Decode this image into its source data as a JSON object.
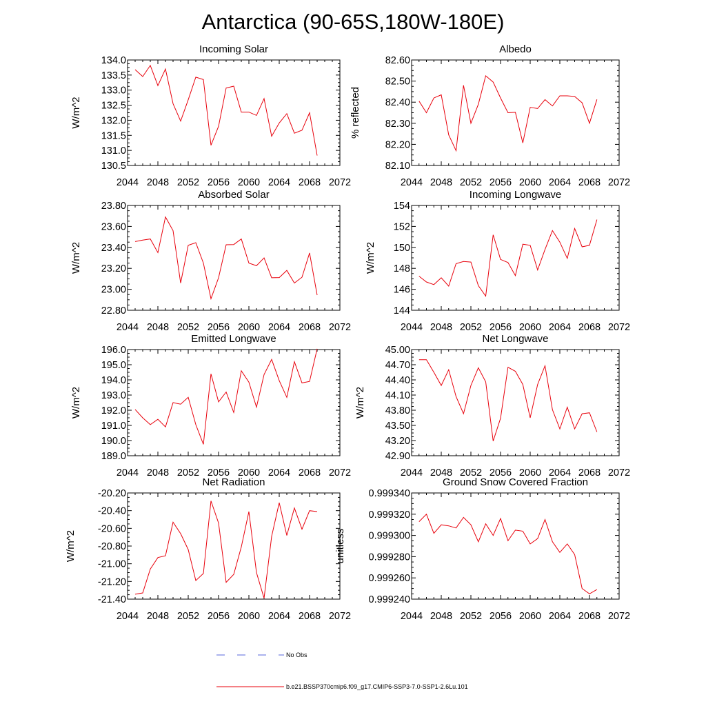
{
  "figure": {
    "title": "Antarctica (90-65S,180W-180E)"
  },
  "legend": {
    "items": [
      {
        "label": "No Obs",
        "color": "#5566dd",
        "style": "dashed"
      },
      {
        "label": "b.e21.BSSP370cmip6.f09_g17.CMIP6-SSP3-7.0-SSP1-2.6Lu.101",
        "color": "#e8000b",
        "style": "solid"
      }
    ]
  },
  "chart_data": [
    {
      "type": "line",
      "title": "Incoming Solar",
      "ylabel": "W/m^2",
      "xlim": [
        2044,
        2072
      ],
      "ylim": [
        130.5,
        134.0
      ],
      "xticks": [
        2044,
        2048,
        2052,
        2056,
        2060,
        2064,
        2068,
        2072
      ],
      "xtick_labels": [
        "2044",
        "2048",
        "2052",
        "2056",
        "2060",
        "2064",
        "2068",
        "2072"
      ],
      "yticks": [
        130.5,
        131.0,
        131.5,
        132.0,
        132.5,
        133.0,
        133.5,
        134.0
      ],
      "ytick_labels": [
        "130.5",
        "131.0",
        "131.5",
        "132.0",
        "132.5",
        "133.0",
        "133.5",
        "134.0"
      ],
      "series": [
        {
          "color": "#e8000b",
          "x": [
            2045,
            2046,
            2047,
            2048,
            2049,
            2050,
            2051,
            2052,
            2053,
            2054,
            2055,
            2056,
            2057,
            2058,
            2059,
            2060,
            2061,
            2062,
            2063,
            2064,
            2065,
            2066,
            2067,
            2068,
            2069
          ],
          "y": [
            133.68,
            133.45,
            133.82,
            133.15,
            133.7,
            132.55,
            131.97,
            132.68,
            133.43,
            133.35,
            131.17,
            131.8,
            133.07,
            133.13,
            132.27,
            132.27,
            132.16,
            132.72,
            131.47,
            131.91,
            132.22,
            131.57,
            131.67,
            132.25,
            130.83
          ]
        }
      ]
    },
    {
      "type": "line",
      "title": "Albedo",
      "ylabel": "% reflected",
      "xlim": [
        2044,
        2072
      ],
      "ylim": [
        82.1,
        82.6
      ],
      "xticks": [
        2044,
        2048,
        2052,
        2056,
        2060,
        2064,
        2068,
        2072
      ],
      "xtick_labels": [
        "2044",
        "2048",
        "2052",
        "2056",
        "2060",
        "2064",
        "2068",
        "2072"
      ],
      "yticks": [
        82.1,
        82.2,
        82.3,
        82.4,
        82.5,
        82.6
      ],
      "ytick_labels": [
        "82.10",
        "82.20",
        "82.30",
        "82.40",
        "82.50",
        "82.60"
      ],
      "series": [
        {
          "color": "#e8000b",
          "x": [
            2045,
            2046,
            2047,
            2048,
            2049,
            2050,
            2051,
            2052,
            2053,
            2054,
            2055,
            2056,
            2057,
            2058,
            2059,
            2060,
            2061,
            2062,
            2063,
            2064,
            2065,
            2066,
            2067,
            2068,
            2069
          ],
          "y": [
            82.405,
            82.35,
            82.42,
            82.435,
            82.245,
            82.17,
            82.48,
            82.3,
            82.39,
            82.525,
            82.495,
            82.42,
            82.35,
            82.352,
            82.207,
            82.375,
            82.37,
            82.412,
            82.382,
            82.43,
            82.43,
            82.427,
            82.397,
            82.3,
            82.413
          ]
        }
      ]
    },
    {
      "type": "line",
      "title": "Absorbed Solar",
      "ylabel": "W/m^2",
      "xlim": [
        2044,
        2072
      ],
      "ylim": [
        22.8,
        23.8
      ],
      "xticks": [
        2044,
        2048,
        2052,
        2056,
        2060,
        2064,
        2068,
        2072
      ],
      "xtick_labels": [
        "2044",
        "2048",
        "2052",
        "2056",
        "2060",
        "2064",
        "2068",
        "2072"
      ],
      "yticks": [
        22.8,
        23.0,
        23.2,
        23.4,
        23.6,
        23.8
      ],
      "ytick_labels": [
        "22.80",
        "23.00",
        "23.20",
        "23.40",
        "23.60",
        "23.80"
      ],
      "series": [
        {
          "color": "#e8000b",
          "x": [
            2045,
            2046,
            2047,
            2048,
            2049,
            2050,
            2051,
            2052,
            2053,
            2054,
            2055,
            2056,
            2057,
            2058,
            2059,
            2060,
            2061,
            2062,
            2063,
            2064,
            2065,
            2066,
            2067,
            2068,
            2069
          ],
          "y": [
            23.455,
            23.47,
            23.48,
            23.35,
            23.69,
            23.56,
            23.06,
            23.42,
            23.445,
            23.25,
            22.91,
            23.11,
            23.425,
            23.427,
            23.48,
            23.25,
            23.225,
            23.3,
            23.11,
            23.112,
            23.18,
            23.06,
            23.115,
            23.347,
            22.945
          ]
        }
      ]
    },
    {
      "type": "line",
      "title": "Incoming Longwave",
      "ylabel": "W/m^2",
      "xlim": [
        2044,
        2072
      ],
      "ylim": [
        144,
        154
      ],
      "xticks": [
        2044,
        2048,
        2052,
        2056,
        2060,
        2064,
        2068,
        2072
      ],
      "xtick_labels": [
        "2044",
        "2048",
        "2052",
        "2056",
        "2060",
        "2064",
        "2068",
        "2072"
      ],
      "yticks": [
        144,
        146,
        148,
        150,
        152,
        154
      ],
      "ytick_labels": [
        "144",
        "146",
        "148",
        "150",
        "152",
        "154"
      ],
      "series": [
        {
          "color": "#e8000b",
          "x": [
            2045,
            2046,
            2047,
            2048,
            2049,
            2050,
            2051,
            2052,
            2053,
            2054,
            2055,
            2056,
            2057,
            2058,
            2059,
            2060,
            2061,
            2062,
            2063,
            2064,
            2065,
            2066,
            2067,
            2068,
            2069
          ],
          "y": [
            147.25,
            146.7,
            146.45,
            147.1,
            146.3,
            148.45,
            148.65,
            148.6,
            146.35,
            145.35,
            151.2,
            148.85,
            148.55,
            147.3,
            150.3,
            150.2,
            147.85,
            149.8,
            151.6,
            150.5,
            148.95,
            151.8,
            150.05,
            150.2,
            152.65
          ]
        }
      ]
    },
    {
      "type": "line",
      "title": "Emitted Longwave",
      "ylabel": "W/m^2",
      "xlim": [
        2044,
        2072
      ],
      "ylim": [
        189.0,
        196.0
      ],
      "xticks": [
        2044,
        2048,
        2052,
        2056,
        2060,
        2064,
        2068,
        2072
      ],
      "xtick_labels": [
        "2044",
        "2048",
        "2052",
        "2056",
        "2060",
        "2064",
        "2068",
        "2072"
      ],
      "yticks": [
        189.0,
        190.0,
        191.0,
        192.0,
        193.0,
        194.0,
        195.0,
        196.0
      ],
      "ytick_labels": [
        "189.0",
        "190.0",
        "191.0",
        "192.0",
        "193.0",
        "194.0",
        "195.0",
        "196.0"
      ],
      "series": [
        {
          "color": "#e8000b",
          "x": [
            2045,
            2046,
            2047,
            2048,
            2049,
            2050,
            2051,
            2052,
            2053,
            2054,
            2055,
            2056,
            2057,
            2058,
            2059,
            2060,
            2061,
            2062,
            2063,
            2064,
            2065,
            2066,
            2067,
            2068,
            2069
          ],
          "y": [
            192.05,
            191.5,
            191.05,
            191.4,
            190.9,
            192.5,
            192.4,
            192.85,
            191.05,
            189.75,
            194.4,
            192.55,
            193.2,
            191.85,
            194.6,
            193.85,
            192.2,
            194.35,
            195.35,
            193.95,
            192.85,
            195.2,
            193.8,
            193.9,
            196.05
          ]
        }
      ]
    },
    {
      "type": "line",
      "title": "Net Longwave",
      "ylabel": "W/m^2",
      "xlim": [
        2044,
        2072
      ],
      "ylim": [
        42.9,
        45.0
      ],
      "xticks": [
        2044,
        2048,
        2052,
        2056,
        2060,
        2064,
        2068,
        2072
      ],
      "xtick_labels": [
        "2044",
        "2048",
        "2052",
        "2056",
        "2060",
        "2064",
        "2068",
        "2072"
      ],
      "yticks": [
        42.9,
        43.2,
        43.5,
        43.8,
        44.1,
        44.4,
        44.7,
        45.0
      ],
      "ytick_labels": [
        "42.90",
        "43.20",
        "43.50",
        "43.80",
        "44.10",
        "44.40",
        "44.70",
        "45.00"
      ],
      "series": [
        {
          "color": "#e8000b",
          "x": [
            2045,
            2046,
            2047,
            2048,
            2049,
            2050,
            2051,
            2052,
            2053,
            2054,
            2055,
            2056,
            2057,
            2058,
            2059,
            2060,
            2061,
            2062,
            2063,
            2064,
            2065,
            2066,
            2067,
            2068,
            2069
          ],
          "y": [
            44.8,
            44.8,
            44.55,
            44.29,
            44.6,
            44.07,
            43.73,
            44.29,
            44.64,
            44.36,
            43.19,
            43.64,
            44.65,
            44.57,
            44.31,
            43.65,
            44.31,
            44.68,
            43.81,
            43.43,
            43.86,
            43.43,
            43.73,
            43.75,
            43.37
          ]
        }
      ]
    },
    {
      "type": "line",
      "title": "Net Radiation",
      "ylabel": "W/m^2",
      "xlim": [
        2044,
        2072
      ],
      "ylim": [
        -21.4,
        -20.2
      ],
      "xticks": [
        2044,
        2048,
        2052,
        2056,
        2060,
        2064,
        2068,
        2072
      ],
      "xtick_labels": [
        "2044",
        "2048",
        "2052",
        "2056",
        "2060",
        "2064",
        "2068",
        "2072"
      ],
      "yticks": [
        -21.4,
        -21.2,
        -21.0,
        -20.8,
        -20.6,
        -20.4,
        -20.2
      ],
      "ytick_labels": [
        "-21.40",
        "-21.20",
        "-21.00",
        "-20.80",
        "-20.60",
        "-20.40",
        "-20.20"
      ],
      "series": [
        {
          "color": "#e8000b",
          "x": [
            2045,
            2046,
            2047,
            2048,
            2049,
            2050,
            2051,
            2052,
            2053,
            2054,
            2055,
            2056,
            2057,
            2058,
            2059,
            2060,
            2061,
            2062,
            2063,
            2064,
            2065,
            2066,
            2067,
            2068,
            2069
          ],
          "y": [
            -21.345,
            -21.33,
            -21.06,
            -20.93,
            -20.91,
            -20.53,
            -20.66,
            -20.84,
            -21.19,
            -21.11,
            -20.29,
            -20.54,
            -21.21,
            -21.12,
            -20.81,
            -20.41,
            -21.1,
            -21.39,
            -20.69,
            -20.31,
            -20.68,
            -20.37,
            -20.61,
            -20.4,
            -20.41
          ]
        }
      ]
    },
    {
      "type": "line",
      "title": "Ground Snow Covered Fraction",
      "ylabel": "unitless",
      "xlim": [
        2044,
        2072
      ],
      "ylim": [
        0.99924,
        0.99934
      ],
      "xticks": [
        2044,
        2048,
        2052,
        2056,
        2060,
        2064,
        2068,
        2072
      ],
      "xtick_labels": [
        "2044",
        "2048",
        "2052",
        "2056",
        "2060",
        "2064",
        "2068",
        "2072"
      ],
      "yticks": [
        0.99924,
        0.99926,
        0.99928,
        0.9993,
        0.99932,
        0.99934
      ],
      "ytick_labels": [
        "0.999240",
        "0.999260",
        "0.999280",
        "0.999300",
        "0.999320",
        "0.999340"
      ],
      "series": [
        {
          "color": "#e8000b",
          "x": [
            2045,
            2046,
            2047,
            2048,
            2049,
            2050,
            2051,
            2052,
            2053,
            2054,
            2055,
            2056,
            2057,
            2058,
            2059,
            2060,
            2061,
            2062,
            2063,
            2064,
            2065,
            2066,
            2067,
            2068,
            2069
          ],
          "y": [
            0.999313,
            0.99932,
            0.999302,
            0.99931,
            0.999309,
            0.999307,
            0.999317,
            0.99931,
            0.999294,
            0.999311,
            0.9993,
            0.999316,
            0.999295,
            0.999305,
            0.999304,
            0.999292,
            0.999297,
            0.999315,
            0.999294,
            0.999284,
            0.999292,
            0.999282,
            0.99925,
            0.999245,
            0.999249
          ]
        }
      ]
    }
  ]
}
